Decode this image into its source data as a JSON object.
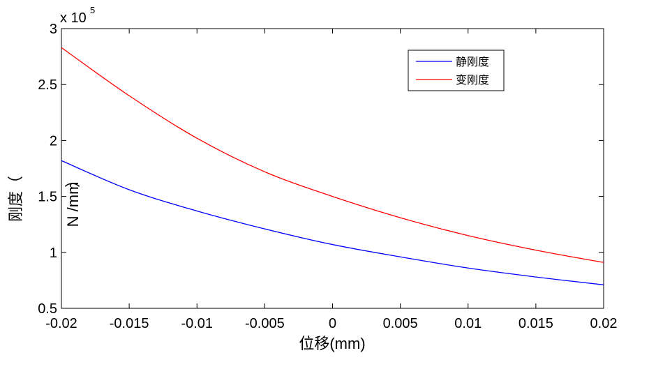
{
  "chart_data": {
    "type": "line",
    "xlabel": "位移(mm)",
    "ylabel": "刚度（N/mm）",
    "ylabel_parts": [
      "刚度（",
      "N /mm",
      "）"
    ],
    "exponent_label": "x 10",
    "exponent_power": "5",
    "xlim": [
      -0.02,
      0.02
    ],
    "ylim": [
      0.5,
      3
    ],
    "y_scale_factor": 100000,
    "xticks": [
      -0.02,
      -0.015,
      -0.01,
      -0.005,
      0,
      0.005,
      0.01,
      0.015,
      0.02
    ],
    "xtick_labels": [
      "-0.02",
      "-0.015",
      "-0.01",
      "-0.005",
      "0",
      "0.005",
      "0.01",
      "0.015",
      "0.02"
    ],
    "yticks": [
      0.5,
      1,
      1.5,
      2,
      2.5,
      3
    ],
    "ytick_labels": [
      "0.5",
      "1",
      "1.5",
      "2",
      "2.5",
      "3"
    ],
    "grid": false,
    "legend_position": "top-right",
    "series": [
      {
        "name": "静刚度",
        "color": "#0000ff",
        "x": [
          -0.02,
          -0.015,
          -0.01,
          -0.005,
          0,
          0.005,
          0.01,
          0.015,
          0.02
        ],
        "y": [
          1.82,
          1.56,
          1.37,
          1.21,
          1.07,
          0.96,
          0.86,
          0.78,
          0.71
        ]
      },
      {
        "name": "变刚度",
        "color": "#ff0000",
        "x": [
          -0.02,
          -0.015,
          -0.01,
          -0.005,
          0,
          0.005,
          0.01,
          0.015,
          0.02
        ],
        "y": [
          2.83,
          2.4,
          2.02,
          1.72,
          1.5,
          1.31,
          1.15,
          1.02,
          0.91
        ]
      }
    ]
  }
}
